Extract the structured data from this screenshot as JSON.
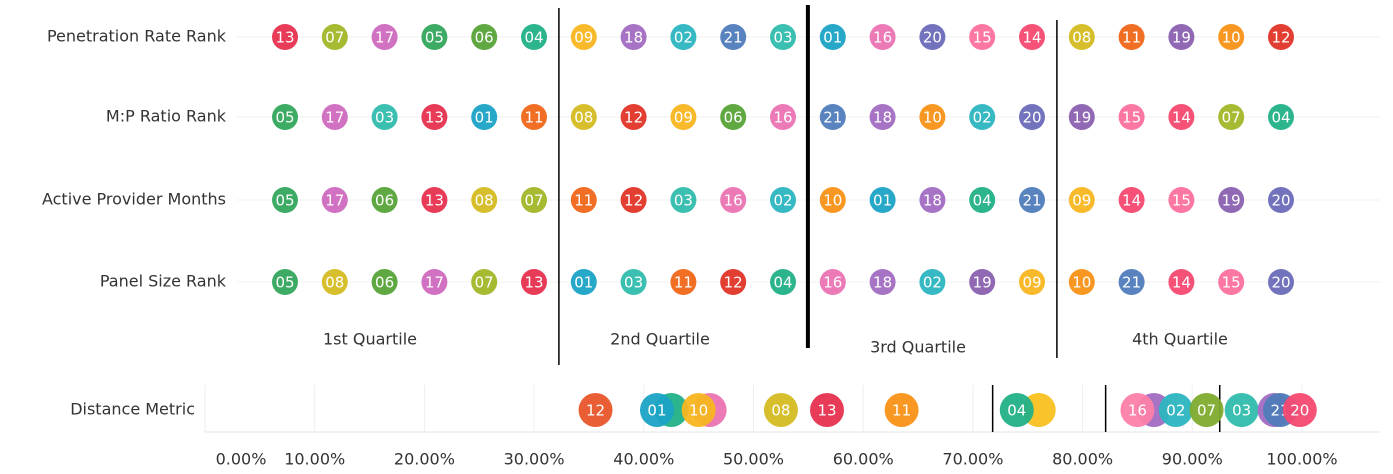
{
  "chart_data": [
    {
      "type": "rank_grid",
      "rows": [
        {
          "label": "Penetration Rate Rank",
          "ids": [
            "13",
            "07",
            "17",
            "05",
            "06",
            "04",
            "09",
            "18",
            "02",
            "21",
            "03",
            "01",
            "16",
            "20",
            "15",
            "14",
            "08",
            "11",
            "19",
            "10",
            "12"
          ]
        },
        {
          "label": "M:P Ratio Rank",
          "ids": [
            "05",
            "17",
            "03",
            "13",
            "01",
            "11",
            "08",
            "12",
            "09",
            "06",
            "16",
            "21",
            "18",
            "10",
            "02",
            "20",
            "19",
            "15",
            "14",
            "07",
            "04"
          ]
        },
        {
          "label": "Active Provider Months",
          "ids": [
            "05",
            "17",
            "06",
            "13",
            "08",
            "07",
            "11",
            "12",
            "03",
            "16",
            "02",
            "10",
            "01",
            "18",
            "04",
            "21",
            "09",
            "14",
            "15",
            "19",
            "20"
          ]
        },
        {
          "label": "Panel Size Rank",
          "ids": [
            "05",
            "08",
            "06",
            "17",
            "07",
            "13",
            "01",
            "03",
            "11",
            "12",
            "04",
            "16",
            "18",
            "02",
            "19",
            "09",
            "10",
            "21",
            "14",
            "15",
            "20"
          ]
        }
      ],
      "quartile_breaks": [
        6,
        11,
        16
      ],
      "quartiles": [
        "1st Quartile",
        "2nd Quartile",
        "3rd Quartile",
        "4th Quartile"
      ],
      "id_colors": {
        "01": "#1ba3c6",
        "02": "#2cb5c0",
        "03": "#30bcad",
        "04": "#21b087",
        "05": "#33a65c",
        "06": "#57a337",
        "07": "#a2b627",
        "08": "#d5bb21",
        "09": "#f8b620",
        "10": "#f89217",
        "11": "#f06719",
        "12": "#e03426",
        "13": "#e6304f",
        "14": "#f64971",
        "15": "#fc719e",
        "16": "#eb73b3",
        "17": "#ce69be",
        "18": "#a26dc2",
        "19": "#8a60b0",
        "20": "#6a6bb8",
        "21": "#4f7cba"
      }
    },
    {
      "type": "scatter",
      "y_label": "Distance Metric",
      "xlim": [
        0,
        100
      ],
      "xticks": [
        {
          "value": 0,
          "label": "0.00%"
        },
        {
          "value": 10,
          "label": "10.00%"
        },
        {
          "value": 20,
          "label": "20.00%"
        },
        {
          "value": 30,
          "label": "30.00%"
        },
        {
          "value": 40,
          "label": "40.00%"
        },
        {
          "value": 50,
          "label": "50.00%"
        },
        {
          "value": 60,
          "label": "60.00%"
        },
        {
          "value": 70,
          "label": "70.00%"
        },
        {
          "value": 80,
          "label": "80.00%"
        },
        {
          "value": 90,
          "label": "90.00%"
        },
        {
          "value": 100,
          "label": "100.00%"
        }
      ],
      "grid": true,
      "reference_lines": [
        71.8,
        82.1,
        92.5
      ],
      "points": [
        {
          "label": "12",
          "x": 35.6,
          "color": "#e8552a"
        },
        {
          "label": null,
          "x": 42.5,
          "color": "#21b087"
        },
        {
          "label": "01",
          "x": 41.2,
          "color": "#1ba3c6"
        },
        {
          "label": null,
          "x": 46,
          "color": "#eb73b3"
        },
        {
          "label": "10",
          "x": 45,
          "color": "#f8b620"
        },
        {
          "label": "08",
          "x": 52.5,
          "color": "#d5bb21"
        },
        {
          "label": "13",
          "x": 56.7,
          "color": "#e6304f"
        },
        {
          "label": "11",
          "x": 63.5,
          "color": "#f89217"
        },
        {
          "label": null,
          "x": 76,
          "color": "#f8c020"
        },
        {
          "label": "04",
          "x": 74,
          "color": "#21b087"
        },
        {
          "label": null,
          "x": 86.5,
          "color": "#a26dc2"
        },
        {
          "label": "16",
          "x": 85,
          "color": "#fc7fa8"
        },
        {
          "label": "02",
          "x": 88.5,
          "color": "#2cb5c0"
        },
        {
          "label": "07",
          "x": 91.3,
          "color": "#7fab2e"
        },
        {
          "label": "03",
          "x": 94.5,
          "color": "#30bcad"
        },
        {
          "label": null,
          "x": 97.5,
          "color": "#a26dc2"
        },
        {
          "label": "21",
          "x": 98,
          "color": "#4f7cba"
        },
        {
          "label": "20",
          "x": 99.8,
          "color": "#f64971"
        }
      ]
    }
  ]
}
